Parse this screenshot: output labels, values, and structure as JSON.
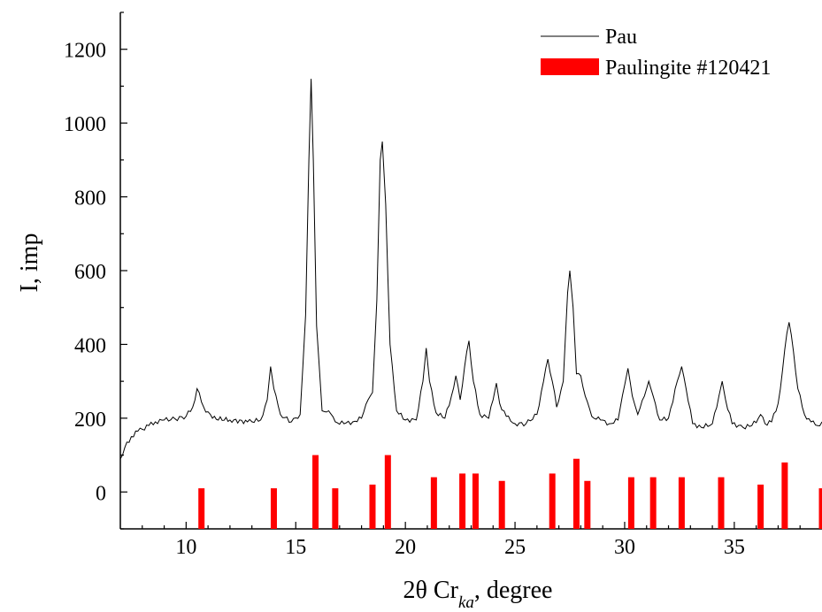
{
  "chart_data": {
    "type": "line",
    "title": "",
    "xlabel": "2θ Cr",
    "xlabel_sub": "ka",
    "xlabel_suffix": ", degree",
    "ylabel": "I, imp",
    "xlim": [
      7,
      39
    ],
    "ylim": [
      -100,
      1300
    ],
    "xticks": [
      10,
      15,
      20,
      25,
      30,
      35
    ],
    "yticks": [
      0,
      200,
      400,
      600,
      800,
      1000,
      1200
    ],
    "grid": false,
    "legend": "top-right",
    "series": [
      {
        "name": "Pau",
        "kind": "line",
        "color": "#000000",
        "x": [
          7.0,
          7.2,
          7.5,
          7.8,
          8.0,
          8.3,
          8.6,
          9.0,
          9.5,
          10.0,
          10.3,
          10.5,
          10.8,
          11.2,
          12.0,
          12.8,
          13.4,
          13.7,
          13.85,
          14.0,
          14.3,
          14.8,
          15.2,
          15.45,
          15.6,
          15.7,
          15.8,
          15.95,
          16.2,
          16.5,
          16.8,
          17.2,
          17.6,
          18.0,
          18.3,
          18.5,
          18.7,
          18.85,
          18.95,
          19.1,
          19.3,
          19.6,
          20.0,
          20.5,
          20.8,
          20.95,
          21.1,
          21.4,
          21.8,
          22.1,
          22.3,
          22.5,
          22.7,
          22.9,
          23.1,
          23.4,
          23.8,
          24.0,
          24.15,
          24.3,
          24.6,
          25.0,
          25.5,
          26.0,
          26.3,
          26.5,
          26.7,
          26.9,
          27.2,
          27.4,
          27.5,
          27.65,
          27.8,
          28.0,
          28.2,
          28.5,
          28.9,
          29.3,
          29.7,
          30.0,
          30.15,
          30.35,
          30.6,
          30.9,
          31.1,
          31.3,
          31.6,
          32.0,
          32.4,
          32.6,
          32.8,
          33.1,
          33.5,
          34.0,
          34.3,
          34.45,
          34.6,
          34.9,
          35.4,
          35.8,
          36.1,
          36.2,
          36.4,
          36.7,
          37.0,
          37.2,
          37.4,
          37.5,
          37.7,
          37.9,
          38.2,
          38.5,
          38.8,
          39.0
        ],
        "y": [
          90,
          120,
          150,
          165,
          170,
          180,
          190,
          195,
          198,
          205,
          230,
          280,
          230,
          200,
          195,
          190,
          195,
          250,
          340,
          280,
          210,
          190,
          210,
          480,
          900,
          1120,
          900,
          450,
          220,
          220,
          190,
          185,
          190,
          200,
          250,
          270,
          520,
          900,
          950,
          780,
          400,
          220,
          195,
          195,
          300,
          390,
          300,
          215,
          200,
          260,
          315,
          250,
          340,
          410,
          300,
          210,
          200,
          250,
          295,
          240,
          205,
          185,
          185,
          210,
          300,
          360,
          300,
          230,
          300,
          540,
          600,
          500,
          320,
          315,
          260,
          205,
          195,
          185,
          195,
          290,
          335,
          260,
          210,
          260,
          300,
          260,
          195,
          200,
          300,
          340,
          280,
          185,
          175,
          185,
          260,
          300,
          250,
          185,
          175,
          180,
          200,
          210,
          185,
          190,
          240,
          330,
          430,
          460,
          380,
          280,
          210,
          190,
          180,
          190
        ]
      },
      {
        "name": "Paulingite #120421",
        "kind": "stick",
        "color": "#ff0000",
        "x": [
          10.7,
          14.0,
          15.9,
          16.8,
          18.5,
          19.2,
          21.3,
          22.6,
          23.2,
          24.4,
          26.7,
          27.8,
          28.3,
          30.3,
          31.3,
          32.6,
          34.4,
          36.2,
          37.3,
          39.0
        ],
        "y": [
          10,
          10,
          100,
          10,
          20,
          100,
          40,
          50,
          50,
          30,
          50,
          90,
          30,
          40,
          40,
          40,
          40,
          20,
          80,
          10
        ]
      }
    ]
  }
}
